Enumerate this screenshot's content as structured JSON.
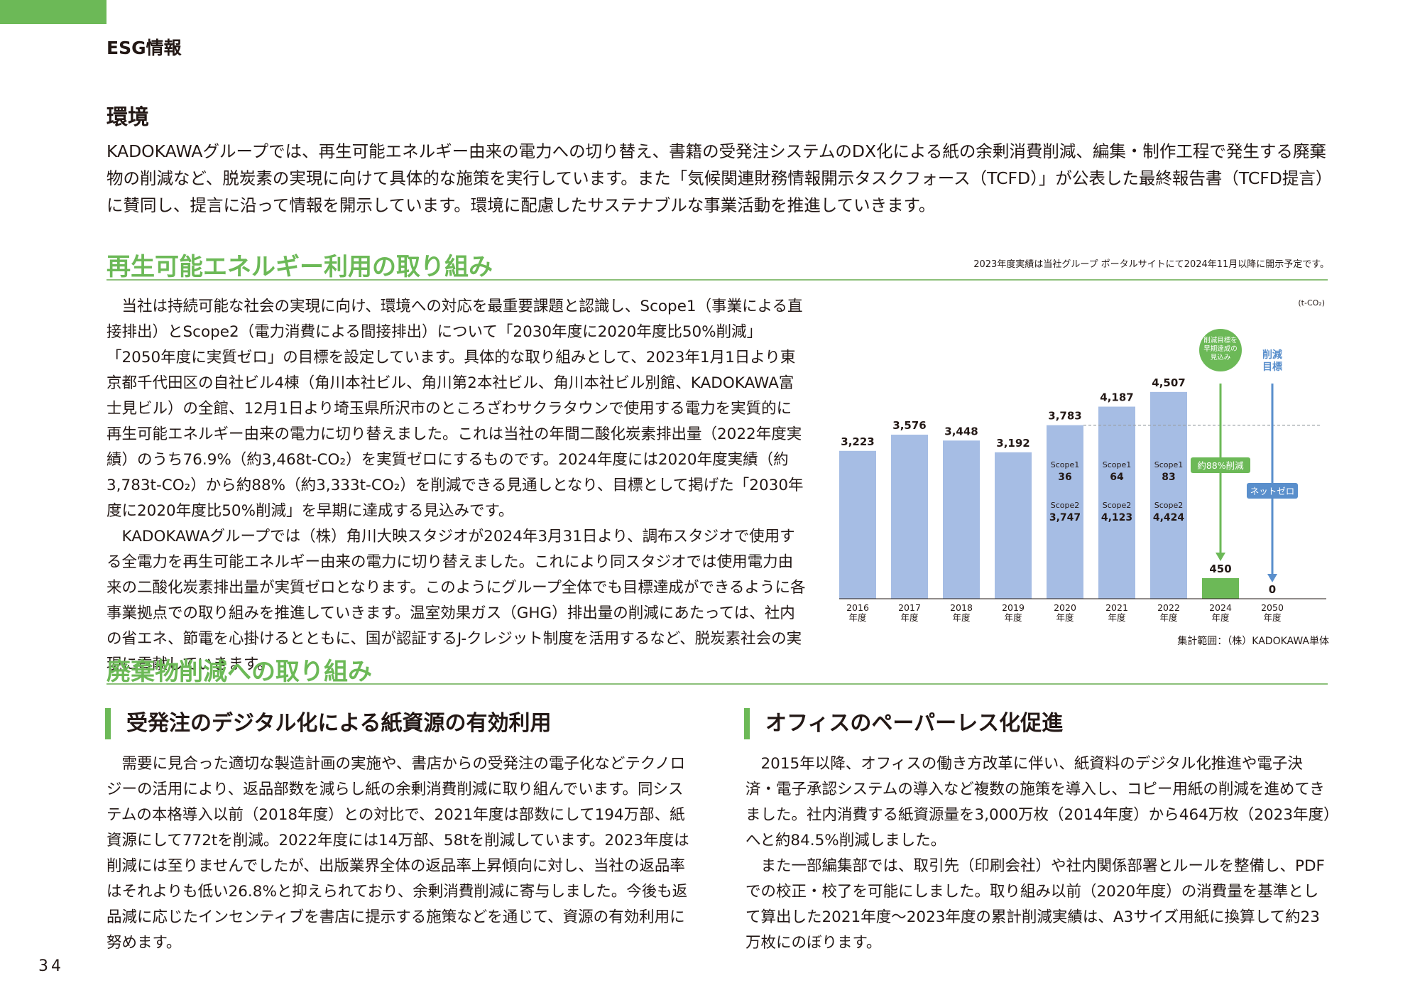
{
  "header": {
    "section_label": "ESG情報"
  },
  "environment": {
    "title": "環境",
    "intro": "KADOKAWAグループでは、再生可能エネルギー由来の電力への切り替え、書籍の受発注システムのDX化による紙の余剰消費削減、編集・制作工程で発生する廃棄物の削減など、脱炭素の実現に向けて具体的な施策を実行しています。また「気候関連財務情報開示タスクフォース（TCFD）」が公表した最終報告書（TCFD提言）に賛同し、提言に沿って情報を開示しています。環境に配慮したサステナブルな事業活動を推進していきます。"
  },
  "renewable": {
    "title": "再生可能エネルギー利用の取り組み",
    "note": "2023年度実績は当社グループ ポータルサイトにて2024年11月以降に開示予定です。",
    "para1": "当社は持続可能な社会の実現に向け、環境への対応を最重要課題と認識し、Scope1（事業による直接排出）とScope2（電力消費による間接排出）について「2030年度に2020年度比50%削減」「2050年度に実質ゼロ」の目標を設定しています。具体的な取り組みとして、2023年1月1日より東京都千代田区の自社ビル4棟（角川本社ビル、角川第2本社ビル、角川本社ビル別館、KADOKAWA富士見ビル）の全館、12月1日より埼玉県所沢市のところざわサクラタウンで使用する電力を実質的に再生可能エネルギー由来の電力に切り替えました。これは当社の年間二酸化炭素排出量（2022年度実績）のうち76.9%（約3,468t-CO₂）を実質ゼロにするものです。2024年度には2020年度実績（約3,783t-CO₂）から約88%（約3,333t-CO₂）を削減できる見通しとなり、目標として掲げた「2030年度に2020年度比50%削減」を早期に達成する見込みです。",
    "para2": "KADOKAWAグループでは（株）角川大映スタジオが2024年3月31日より、調布スタジオで使用する全電力を再生可能エネルギー由来の電力に切り替えました。これにより同スタジオでは使用電力由来の二酸化炭素排出量が実質ゼロとなります。このようにグループ全体でも目標達成ができるように各事業拠点での取り組みを推進していきます。温室効果ガス（GHG）排出量の削減にあたっては、社内の省エネ、節電を心掛けるとともに、国が認証するJ-クレジット制度を活用するなど、脱炭素社会の実現に貢献していきます。",
    "scope_note": "集計範囲：（株）KADOKAWA単体"
  },
  "chart_data": {
    "type": "bar",
    "unit": "(t-CO₂)",
    "categories": [
      "2016年度",
      "2017年度",
      "2018年度",
      "2019年度",
      "2020年度",
      "2021年度",
      "2022年度",
      "2024年度",
      "2050年度"
    ],
    "x_labels_top": [
      "2016",
      "2017",
      "2018",
      "2019",
      "2020",
      "2021",
      "2022",
      "2024",
      "2050"
    ],
    "x_label_suffix": "年度",
    "values": [
      3223,
      3576,
      3448,
      3192,
      3783,
      4187,
      4507,
      450,
      0
    ],
    "value_labels": [
      "3,223",
      "3,576",
      "3,448",
      "3,192",
      "3,783",
      "4,187",
      "4,507",
      "450",
      "0"
    ],
    "bar_colors": [
      "#a6bde4",
      "#a6bde4",
      "#a6bde4",
      "#a6bde4",
      "#a6bde4",
      "#a6bde4",
      "#a6bde4",
      "#6cb957",
      "#a6bde4"
    ],
    "scope_breakdown": [
      {
        "category": "2020年度",
        "scope1_label": "Scope1",
        "scope1": "36",
        "scope2_label": "Scope2",
        "scope2": "3,747"
      },
      {
        "category": "2021年度",
        "scope1_label": "Scope1",
        "scope1": "64",
        "scope2_label": "Scope2",
        "scope2": "4,123"
      },
      {
        "category": "2022年度",
        "scope1_label": "Scope1",
        "scope1": "83",
        "scope2_label": "Scope2",
        "scope2": "4,424"
      }
    ],
    "annotations": {
      "early_bubble": [
        "削減目標を",
        "早期達成の",
        "見込み"
      ],
      "reduce_target": [
        "削減",
        "目標"
      ],
      "approx88": "約88%削減",
      "net_zero": "ネットゼロ"
    },
    "ylim": [
      0,
      4800
    ],
    "grid": false,
    "colors": {
      "bar": "#a6bde4",
      "bar_2024": "#6cb957",
      "green": "#6cb957",
      "blue": "#5a8fcc"
    }
  },
  "waste": {
    "title": "廃棄物削減への取り組み",
    "left": {
      "title": "受発注のデジタル化による紙資源の有効利用",
      "text": "需要に見合った適切な製造計画の実施や、書店からの受発注の電子化などテクノロジーの活用により、返品部数を減らし紙の余剰消費削減に取り組んでいます。同システムの本格導入以前（2018年度）との対比で、2021年度は部数にして194万部、紙資源にして772tを削減。2022年度には14万部、58tを削減しています。2023年度は削減には至りませんでしたが、出版業界全体の返品率上昇傾向に対し、当社の返品率はそれよりも低い26.8%と抑えられており、余剰消費削減に寄与しました。今後も返品減に応じたインセンティブを書店に提示する施策などを通じて、資源の有効利用に努めます。"
    },
    "right": {
      "title": "オフィスのペーパーレス化促進",
      "para1": "2015年以降、オフィスの働き方改革に伴い、紙資料のデジタル化推進や電子決済・電子承認システムの導入など複数の施策を導入し、コピー用紙の削減を進めてきました。社内消費する紙資源量を3,000万枚（2014年度）から464万枚（2023年度）へと約84.5%削減しました。",
      "para2": "また一部編集部では、取引先（印刷会社）や社内関係部署とルールを整備し、PDFでの校正・校了を可能にしました。取り組み以前（2020年度）の消費量を基準として算出した2021年度〜2023年度の累計削減実績は、A3サイズ用紙に換算して約23万枚にのぼります。"
    }
  },
  "footer": {
    "page_number": "34"
  }
}
